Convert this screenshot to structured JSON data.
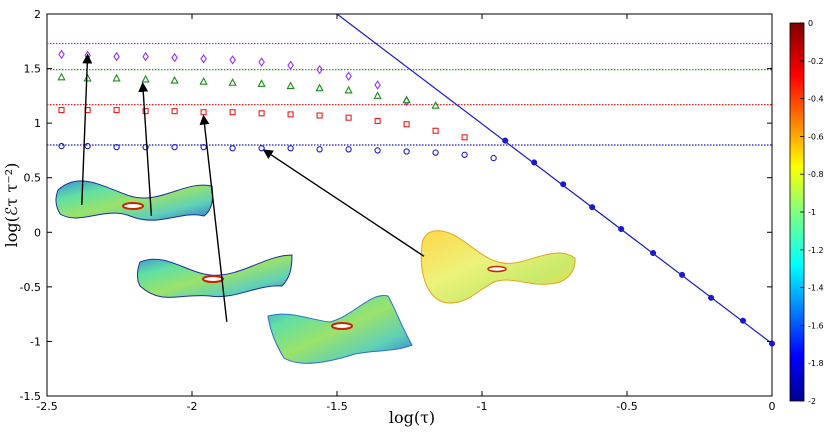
{
  "chart_data": {
    "type": "scatter",
    "xlabel": "log(τ)",
    "ylabel": "log(ℰτ τ⁻²)",
    "xlim": [
      -2.5,
      0
    ],
    "ylim": [
      -1.5,
      2
    ],
    "x_ticks": [
      "-2.5",
      "-2",
      "-1.5",
      "-1",
      "-0.5",
      "0"
    ],
    "y_ticks": [
      "2",
      "1.5",
      "1",
      "0.5",
      "0",
      "-0.5",
      "-1",
      "-1.5"
    ],
    "grid": false,
    "series": [
      {
        "marker": "diamond",
        "color": "#9b30ff",
        "x": [
          -2.45,
          -2.36,
          -2.26,
          -2.16,
          -2.06,
          -1.96,
          -1.86,
          -1.76,
          -1.66,
          -1.56,
          -1.46,
          -1.36,
          -1.26
        ],
        "y": [
          1.63,
          1.62,
          1.61,
          1.61,
          1.6,
          1.59,
          1.58,
          1.56,
          1.53,
          1.49,
          1.43,
          1.35,
          1.2
        ]
      },
      {
        "marker": "triangle",
        "color": "#1a8c1a",
        "x": [
          -2.45,
          -2.36,
          -2.26,
          -2.16,
          -2.06,
          -1.96,
          -1.86,
          -1.76,
          -1.66,
          -1.56,
          -1.46,
          -1.36,
          -1.26,
          -1.16
        ],
        "y": [
          1.42,
          1.41,
          1.41,
          1.4,
          1.39,
          1.38,
          1.37,
          1.36,
          1.34,
          1.32,
          1.3,
          1.25,
          1.21,
          1.16
        ]
      },
      {
        "marker": "square",
        "color": "#ee1c1c",
        "x": [
          -2.45,
          -2.36,
          -2.26,
          -2.16,
          -2.06,
          -1.96,
          -1.86,
          -1.76,
          -1.66,
          -1.56,
          -1.46,
          -1.36,
          -1.26,
          -1.16,
          -1.06
        ],
        "y": [
          1.12,
          1.12,
          1.12,
          1.11,
          1.11,
          1.1,
          1.1,
          1.09,
          1.08,
          1.07,
          1.05,
          1.02,
          0.99,
          0.93,
          0.87
        ]
      },
      {
        "marker": "circle",
        "color": "#1a1acc",
        "x": [
          -2.45,
          -2.36,
          -2.26,
          -2.16,
          -2.06,
          -1.96,
          -1.86,
          -1.76,
          -1.66,
          -1.56,
          -1.46,
          -1.36,
          -1.26,
          -1.16,
          -1.06,
          -0.96
        ],
        "y": [
          0.79,
          0.79,
          0.78,
          0.78,
          0.78,
          0.78,
          0.77,
          0.77,
          0.77,
          0.76,
          0.76,
          0.75,
          0.74,
          0.73,
          0.71,
          0.68
        ]
      },
      {
        "marker": "dot",
        "color": "#1a1acc",
        "x": [
          -0.92,
          -0.82,
          -0.72,
          -0.62,
          -0.52,
          -0.41,
          -0.31,
          -0.21,
          -0.1,
          0.0
        ],
        "y": [
          0.84,
          0.64,
          0.44,
          0.23,
          0.03,
          -0.19,
          -0.39,
          -0.6,
          -0.81,
          -1.02
        ]
      }
    ],
    "reference_lines": [
      {
        "type": "horizontal",
        "y": 1.73,
        "color": "#9b30ff",
        "style": "dotted"
      },
      {
        "type": "horizontal",
        "y": 1.49,
        "color": "#1a8c1a",
        "style": "dotted"
      },
      {
        "type": "horizontal",
        "y": 1.17,
        "color": "#ee1c1c",
        "style": "dotted"
      },
      {
        "type": "horizontal",
        "y": 0.8,
        "color": "#1a1acc",
        "style": "dotted"
      },
      {
        "type": "line",
        "x": [
          -1.5,
          0.0
        ],
        "y": [
          2.0,
          -1.02
        ],
        "color": "#1a1acc",
        "style": "solid"
      }
    ],
    "colorbar": {
      "range": [
        -2,
        0
      ],
      "ticks": [
        "0",
        "-0.2",
        "-0.4",
        "-0.6",
        "-0.8",
        "-1",
        "-1.2",
        "-1.4",
        "-1.6",
        "-1.8",
        "-2"
      ]
    },
    "annotations": [
      {
        "type": "arrow",
        "from": [
          -2.38,
          0.25
        ],
        "to": [
          -2.36,
          1.62
        ]
      },
      {
        "type": "arrow",
        "from": [
          -2.14,
          0.15
        ],
        "to": [
          -2.17,
          1.36
        ]
      },
      {
        "type": "arrow",
        "from": [
          -1.88,
          -0.82
        ],
        "to": [
          -1.96,
          1.06
        ]
      },
      {
        "type": "arrow",
        "from": [
          -1.2,
          -0.22
        ],
        "to": [
          -1.75,
          0.75
        ]
      }
    ],
    "insets": [
      {
        "type": "surface-image",
        "description": "saddle-shaped elastic sheet",
        "anchor": [
          -2.45,
          0.3
        ]
      },
      {
        "type": "surface-image",
        "description": "elongated wavy sheet",
        "anchor": [
          -2.2,
          -0.45
        ]
      },
      {
        "type": "surface-image",
        "description": "folded sheet",
        "anchor": [
          -1.85,
          -0.9
        ]
      },
      {
        "type": "surface-image",
        "description": "curled yellow sheet",
        "anchor": [
          -1.2,
          -0.3
        ]
      }
    ]
  }
}
